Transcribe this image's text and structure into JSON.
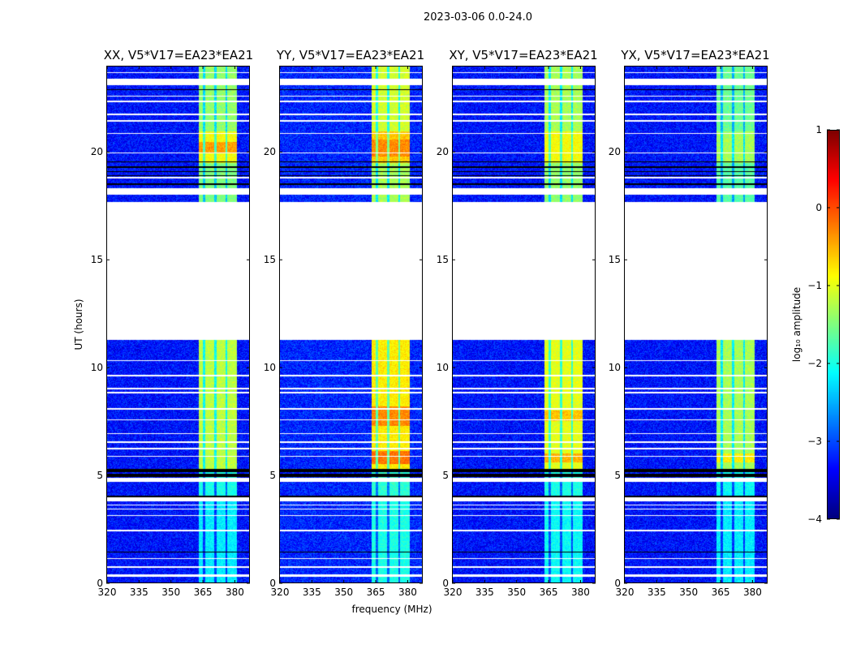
{
  "chart_data": {
    "type": "heatmap",
    "title": "2023-03-06 0.0-24.0",
    "xlabel": "frequency (MHz)",
    "ylabel": "UT (hours)",
    "xlim": [
      320,
      386.7
    ],
    "ylim": [
      0,
      24
    ],
    "xticks": [
      320,
      335,
      350,
      365,
      380
    ],
    "yticks": [
      0,
      5,
      10,
      15,
      20
    ],
    "panels": [
      {
        "title": "XX, V5*V17=EA23*EA21",
        "background": -3.3,
        "band_levels": [
          [
            0,
            4,
            -2.2
          ],
          [
            4,
            5.3,
            -2.0
          ],
          [
            5.3,
            11.3,
            -1.2
          ],
          [
            17.7,
            19.5,
            -1.5
          ],
          [
            19.5,
            21,
            -0.9
          ],
          [
            21,
            24,
            -1.4
          ]
        ],
        "hot": [
          [
            20,
            20.5,
            -0.4
          ]
        ]
      },
      {
        "title": "YY, V5*V17=EA23*EA21",
        "background": -3.2,
        "band_levels": [
          [
            0,
            4,
            -2.0
          ],
          [
            4,
            5.3,
            -1.9
          ],
          [
            5.3,
            11.3,
            -0.8
          ],
          [
            17.7,
            19.5,
            -1.3
          ],
          [
            19.5,
            21,
            -0.6
          ],
          [
            21,
            24,
            -1.1
          ]
        ],
        "hot": [
          [
            5.5,
            6.1,
            -0.2
          ],
          [
            7.3,
            8.2,
            -0.3
          ],
          [
            19.8,
            20.6,
            -0.3
          ]
        ]
      },
      {
        "title": "XY, V5*V17=EA23*EA21",
        "background": -3.3,
        "band_levels": [
          [
            0,
            4,
            -2.1
          ],
          [
            4,
            5.3,
            -2.0
          ],
          [
            5.3,
            11.3,
            -1.0
          ],
          [
            17.7,
            19.5,
            -1.4
          ],
          [
            19.5,
            21,
            -0.9
          ],
          [
            21,
            24,
            -1.3
          ]
        ],
        "hot": [
          [
            5.6,
            6.0,
            -0.5
          ],
          [
            7.5,
            8.0,
            -0.6
          ]
        ]
      },
      {
        "title": "YX, V5*V17=EA23*EA21",
        "background": -3.3,
        "band_levels": [
          [
            0,
            4,
            -2.2
          ],
          [
            4,
            5.3,
            -2.1
          ],
          [
            5.3,
            11.3,
            -1.3
          ],
          [
            17.7,
            19.5,
            -1.7
          ],
          [
            19.5,
            21,
            -1.3
          ],
          [
            21,
            24,
            -1.6
          ]
        ],
        "hot": [
          [
            5.6,
            6.0,
            -0.8
          ]
        ]
      }
    ],
    "band_mhz": [
      363,
      381
    ],
    "band_gaps_mhz": [
      365.5,
      371,
      376
    ],
    "flagged_hours": [
      [
        0.28,
        0.36
      ],
      [
        0.68,
        0.74
      ],
      [
        1.08,
        1.14
      ],
      [
        2.38,
        2.44
      ],
      [
        3.08,
        3.14
      ],
      [
        3.38,
        3.44
      ],
      [
        3.58,
        3.64
      ],
      [
        3.78,
        3.95
      ],
      [
        4.68,
        4.85
      ],
      [
        5.85,
        5.9
      ],
      [
        6.2,
        6.25
      ],
      [
        6.5,
        6.55
      ],
      [
        6.9,
        6.95
      ],
      [
        7.55,
        7.6
      ],
      [
        8.05,
        8.1
      ],
      [
        8.8,
        8.85
      ],
      [
        9.0,
        9.05
      ],
      [
        9.6,
        9.65
      ],
      [
        10.3,
        10.35
      ],
      [
        11.3,
        17.7
      ],
      [
        18.05,
        18.35
      ],
      [
        18.8,
        18.85
      ],
      [
        19.95,
        20.0
      ],
      [
        20.85,
        20.9
      ],
      [
        21.45,
        21.5
      ],
      [
        21.75,
        21.8
      ],
      [
        22.35,
        22.4
      ],
      [
        22.6,
        22.65
      ],
      [
        23.15,
        23.45
      ],
      [
        23.7,
        23.75
      ]
    ],
    "black_hours": [
      [
        1.38,
        1.42
      ],
      [
        3.98,
        4.05
      ],
      [
        4.9,
        5.05
      ],
      [
        5.15,
        5.3
      ],
      [
        18.5,
        18.55
      ],
      [
        18.9,
        18.95
      ],
      [
        19.1,
        19.15
      ],
      [
        19.3,
        19.35
      ],
      [
        19.55,
        19.6
      ],
      [
        22.9,
        22.95
      ]
    ],
    "colorbar": {
      "label": "log₁₀ amplitude",
      "range": [
        -4,
        1
      ],
      "ticks": [
        "1",
        "0",
        "−1",
        "−2",
        "−3",
        "−4"
      ],
      "colormap": "jet"
    }
  }
}
